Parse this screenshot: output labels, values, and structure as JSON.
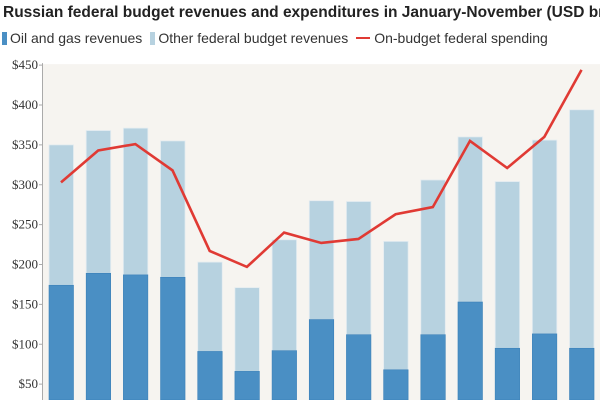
{
  "chart_data": {
    "type": "bar",
    "stacked": true,
    "title": "Russian federal budget revenues and expenditures in January-November (USD bns)",
    "xlabel": "",
    "ylabel": "",
    "ylim": [
      0,
      450
    ],
    "yticks": [
      50,
      100,
      150,
      200,
      250,
      300,
      350,
      400,
      450
    ],
    "ytick_labels": [
      "$50",
      "$100",
      "$150",
      "$200",
      "$250",
      "$300",
      "$350",
      "$400",
      "$450"
    ],
    "x": [
      1,
      2,
      3,
      4,
      5,
      6,
      7,
      8,
      9,
      10,
      11,
      12,
      13,
      14,
      15
    ],
    "series": [
      {
        "name": "Oil and gas revenues",
        "kind": "bar",
        "color": "#4a8fc4",
        "values": [
          174,
          189,
          187,
          184,
          91,
          66,
          92,
          131,
          112,
          68,
          112,
          153,
          95,
          113,
          95
        ]
      },
      {
        "name": "Other federal budget revenues",
        "kind": "bar",
        "color": "#b7d2e0",
        "values": [
          176,
          179,
          184,
          171,
          112,
          105,
          139,
          149,
          167,
          161,
          194,
          207,
          209,
          243,
          299
        ]
      },
      {
        "name": "On-budget federal spending",
        "kind": "line",
        "color": "#e03a34",
        "values": [
          303,
          343,
          351,
          318,
          217,
          197,
          240,
          227,
          232,
          263,
          272,
          355,
          321,
          360,
          444
        ]
      }
    ],
    "legend_position": "top",
    "grid": false
  }
}
